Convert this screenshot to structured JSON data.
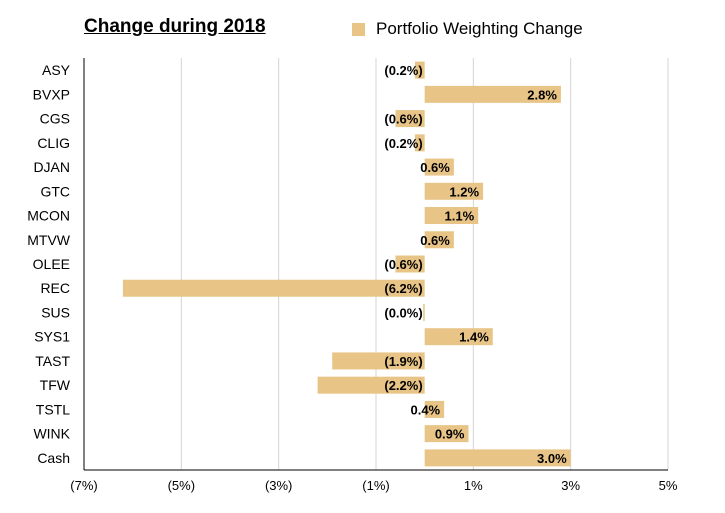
{
  "chart_data": {
    "type": "bar",
    "orientation": "horizontal",
    "title": "Change during 2018",
    "legend": {
      "position": "top-right",
      "label": "Portfolio Weighting Change"
    },
    "series_color": "#e8c487",
    "grid": true,
    "xlim": [
      -7,
      5
    ],
    "xticks": [
      -7,
      -5,
      -3,
      -1,
      1,
      3,
      5
    ],
    "xtick_labels": [
      "(7%)",
      "(5%)",
      "(3%)",
      "(1%)",
      "1%",
      "3%",
      "5%"
    ],
    "categories": [
      "ASY",
      "BVXP",
      "CGS",
      "CLIG",
      "DJAN",
      "GTC",
      "MCON",
      "MTVW",
      "OLEE",
      "REC",
      "SUS",
      "SYS1",
      "TAST",
      "TFW",
      "TSTL",
      "WINK",
      "Cash"
    ],
    "values": [
      -0.2,
      2.8,
      -0.6,
      -0.2,
      0.6,
      1.2,
      1.1,
      0.6,
      -0.6,
      -6.2,
      -0.03,
      1.4,
      -1.9,
      -2.2,
      0.4,
      0.9,
      3.0
    ],
    "data_labels": [
      "(0.2%)",
      "2.8%",
      "(0.6%)",
      "(0.2%)",
      "0.6%",
      "1.2%",
      "1.1%",
      "0.6%",
      "(0.6%)",
      "(6.2%)",
      "(0.0%)",
      "1.4%",
      "(1.9%)",
      "(2.2%)",
      "0.4%",
      "0.9%",
      "3.0%"
    ]
  }
}
